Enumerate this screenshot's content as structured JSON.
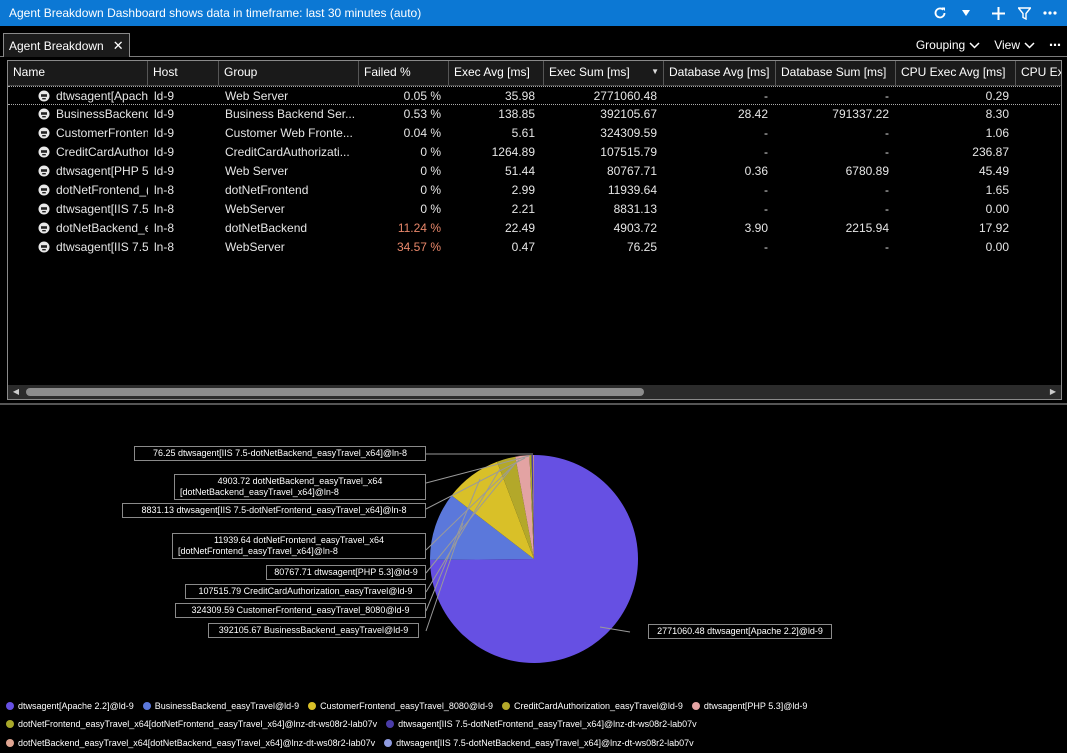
{
  "window": {
    "title": "Agent Breakdown Dashboard shows data in timeframe: last 30 minutes (auto)",
    "icons": [
      "refresh-icon",
      "dropdown-caret-icon",
      "add-icon",
      "filter-icon",
      "more-icon"
    ]
  },
  "tab": {
    "label": "Agent Breakdown",
    "close": "✕"
  },
  "toolbar": {
    "grouping_label": "Grouping",
    "view_label": "View",
    "more": "⋯"
  },
  "table": {
    "columns": [
      "Name",
      "Host",
      "Group",
      "Failed %",
      "Exec Avg [ms]",
      "Exec Sum [ms]",
      "Database Avg [ms]",
      "Database Sum [ms]",
      "CPU Exec Avg [ms]",
      "CPU Exe"
    ],
    "rows": [
      [
        "dtwsagent[Apach",
        "ld-9",
        "Web Server",
        "0.05 %",
        "35.98",
        "2771060.48",
        "-",
        "-",
        "0.29"
      ],
      [
        "BusinessBackend_",
        "ld-9",
        "Business Backend Ser...",
        "0.53 %",
        "138.85",
        "392105.67",
        "28.42",
        "791337.22",
        "8.30"
      ],
      [
        "CustomerFronten",
        "ld-9",
        "Customer Web Fronte...",
        "0.04 %",
        "5.61",
        "324309.59",
        "-",
        "-",
        "1.06"
      ],
      [
        "CreditCardAuthor",
        "ld-9",
        "CreditCardAuthorizati...",
        "0 %",
        "1264.89",
        "107515.79",
        "-",
        "-",
        "236.87"
      ],
      [
        "dtwsagent[PHP 5",
        "ld-9",
        "Web Server",
        "0 %",
        "51.44",
        "80767.71",
        "0.36",
        "6780.89",
        "45.49"
      ],
      [
        "dotNetFrontend_(",
        "ln-8",
        "dotNetFrontend",
        "0 %",
        "2.99",
        "11939.64",
        "-",
        "-",
        "1.65"
      ],
      [
        "dtwsagent[IIS 7.5-",
        "ln-8",
        "WebServer",
        "0 %",
        "2.21",
        "8831.13",
        "-",
        "-",
        "0.00"
      ],
      [
        "dotNetBackend_e",
        "ln-8",
        "dotNetBackend",
        "11.24 %",
        "22.49",
        "4903.72",
        "3.90",
        "2215.94",
        "17.92"
      ],
      [
        "dtwsagent[IIS 7.5-",
        "ln-8",
        "WebServer",
        "34.57 %",
        "0.47",
        "76.25",
        "-",
        "-",
        "0.00"
      ]
    ]
  },
  "chart_data": {
    "type": "pie",
    "title": "",
    "slices": [
      {
        "label": "2771060.48 dtwsagent[Apache 2.2]@ld-9",
        "value": 2771060.48,
        "color": "#6650e3"
      },
      {
        "label": "392105.67 BusinessBackend_easyTravel@ld-9",
        "value": 392105.67,
        "color": "#5b78db"
      },
      {
        "label": "324309.59 CustomerFrontend_easyTravel_8080@ld-9",
        "value": 324309.59,
        "color": "#d9c028"
      },
      {
        "label": "107515.79 CreditCardAuthorization_easyTravel@ld-9",
        "value": 107515.79,
        "color": "#b3a82a"
      },
      {
        "label": "80767.71 dtwsagent[PHP 5.3]@ld-9",
        "value": 80767.71,
        "color": "#e3a3a3"
      },
      {
        "label": "11939.64 dotNetFrontend_easyTravel_x64 [dotNetFrontend_easyTravel_x64]@ln-8",
        "value": 11939.64,
        "color": "#a8a82a"
      },
      {
        "label": "8831.13 dtwsagent[IIS 7.5-dotNetFrontend_easyTravel_x64]@ln-8",
        "value": 8831.13,
        "color": "#4a3ca8"
      },
      {
        "label": "4903.72 dotNetBackend_easyTravel_x64 [dotNetBackend_easyTravel_x64]@ln-8",
        "value": 4903.72,
        "color": "#e0a592"
      },
      {
        "label": "76.25 dtwsagent[IIS 7.5-dotNetBackend_easyTravel_x64]@ln-8",
        "value": 76.25,
        "color": "#8f9be0"
      }
    ],
    "legend": [
      "dtwsagent[Apache 2.2]@ld-9",
      "BusinessBackend_easyTravel@ld-9",
      "CustomerFrontend_easyTravel_8080@ld-9",
      "CreditCardAuthorization_easyTravel@ld-9",
      "dtwsagent[PHP 5.3]@ld-9",
      "dotNetFrontend_easyTravel_x64[dotNetFrontend_easyTravel_x64]@lnz-dt-ws08r2-lab07v",
      "dtwsagent[IIS 7.5-dotNetFrontend_easyTravel_x64]@lnz-dt-ws08r2-lab07v",
      "dotNetBackend_easyTravel_x64[dotNetBackend_easyTravel_x64]@lnz-dt-ws08r2-lab07v",
      "dtwsagent[IIS 7.5-dotNetBackend_easyTravel_x64]@lnz-dt-ws08r2-lab07v"
    ],
    "legend_placement": "bottom"
  },
  "pie_labels": [
    {
      "line1": "76.25 dtwsagent[IIS 7.5-dotNetBackend_easyTravel_x64]@ln-8",
      "line2": ""
    },
    {
      "line1": "4903.72 dotNetBackend_easyTravel_x64",
      "line2": "[dotNetBackend_easyTravel_x64]@ln-8"
    },
    {
      "line1": "8831.13 dtwsagent[IIS 7.5-dotNetFrontend_easyTravel_x64]@ln-8",
      "line2": ""
    },
    {
      "line1": "11939.64 dotNetFrontend_easyTravel_x64",
      "line2": "[dotNetFrontend_easyTravel_x64]@ln-8"
    },
    {
      "line1": "80767.71 dtwsagent[PHP 5.3]@ld-9",
      "line2": ""
    },
    {
      "line1": "107515.79 CreditCardAuthorization_easyTravel@ld-9",
      "line2": ""
    },
    {
      "line1": "324309.59 CustomerFrontend_easyTravel_8080@ld-9",
      "line2": ""
    },
    {
      "line1": "392105.67 BusinessBackend_easyTravel@ld-9",
      "line2": ""
    },
    {
      "line1": "2771060.48 dtwsagent[Apache 2.2]@ld-9",
      "line2": ""
    }
  ]
}
